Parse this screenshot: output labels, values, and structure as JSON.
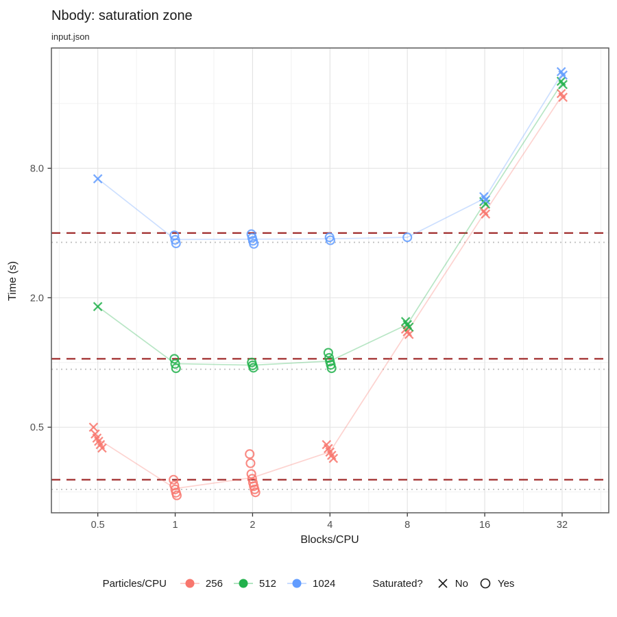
{
  "header": {
    "title": "Nbody: saturation zone",
    "subtitle": "input.json"
  },
  "axes": {
    "x_label": "Blocks/CPU",
    "y_label": "Time (s)"
  },
  "legend": {
    "series_title": "Particles/CPU",
    "series": [
      {
        "label": "256",
        "color": "#F8766D"
      },
      {
        "label": "512",
        "color": "#22B14C"
      },
      {
        "label": "1024",
        "color": "#619CFF"
      }
    ],
    "shape_title": "Saturated?",
    "shapes": [
      {
        "label": "No",
        "shape": "cross"
      },
      {
        "label": "Yes",
        "shape": "circle"
      }
    ]
  },
  "colors": {
    "ref_dashed": "#A02C2C",
    "ref_dotted": "#BDBDBD",
    "grid_major": "#E4E4E4",
    "grid_minor": "#F1F1F1",
    "panel_border": "#595959",
    "tick_text": "#4D4D4D"
  },
  "chart_data": {
    "type": "scatter",
    "title": "Nbody: saturation zone",
    "subtitle": "input.json",
    "xlabel": "Blocks/CPU",
    "ylabel": "Time (s)",
    "log_x": true,
    "log_y": true,
    "xlim": [
      0.33,
      48.6
    ],
    "ylim": [
      0.2,
      29
    ],
    "x_ticks": [
      0.5,
      1,
      2,
      4,
      8,
      16,
      32
    ],
    "x_tick_labels": [
      "0.5",
      "1",
      "2",
      "4",
      "8",
      "16",
      "32"
    ],
    "x_minor": [
      0.354,
      0.707,
      1.414,
      2.828,
      5.657,
      11.314,
      22.627,
      45.255
    ],
    "y_ticks": [
      0.5,
      2.0,
      8.0
    ],
    "y_tick_labels": [
      "0.5",
      "2.0",
      "8.0"
    ],
    "y_minor": [
      0.25,
      1,
      4,
      16
    ],
    "legend_position": "bottom",
    "ref_lines": [
      {
        "series": "1024",
        "dashed": 4.0,
        "dotted": 3.62
      },
      {
        "series": "512",
        "dashed": 1.04,
        "dotted": 0.93
      },
      {
        "series": "256",
        "dashed": 0.285,
        "dotted": 0.257
      }
    ],
    "series": [
      {
        "name": "256",
        "color": "#F8766D",
        "points": [
          {
            "x": 0.5,
            "y": 0.5,
            "saturated": false
          },
          {
            "x": 0.5,
            "y": 0.465,
            "saturated": false
          },
          {
            "x": 0.5,
            "y": 0.445,
            "saturated": false
          },
          {
            "x": 0.5,
            "y": 0.43,
            "saturated": false
          },
          {
            "x": 0.5,
            "y": 0.415,
            "saturated": false
          },
          {
            "x": 0.5,
            "y": 0.4,
            "saturated": false
          },
          {
            "x": 1,
            "y": 0.285,
            "saturated": true
          },
          {
            "x": 1,
            "y": 0.268,
            "saturated": true
          },
          {
            "x": 1,
            "y": 0.257,
            "saturated": true
          },
          {
            "x": 1,
            "y": 0.248,
            "saturated": true
          },
          {
            "x": 1,
            "y": 0.241,
            "saturated": true
          },
          {
            "x": 2,
            "y": 0.375,
            "saturated": true
          },
          {
            "x": 2,
            "y": 0.34,
            "saturated": true
          },
          {
            "x": 2,
            "y": 0.303,
            "saturated": true
          },
          {
            "x": 2,
            "y": 0.288,
            "saturated": true
          },
          {
            "x": 2,
            "y": 0.276,
            "saturated": true
          },
          {
            "x": 2,
            "y": 0.266,
            "saturated": true
          },
          {
            "x": 2,
            "y": 0.257,
            "saturated": true
          },
          {
            "x": 2,
            "y": 0.249,
            "saturated": true
          },
          {
            "x": 4,
            "y": 0.415,
            "saturated": false
          },
          {
            "x": 4,
            "y": 0.398,
            "saturated": false
          },
          {
            "x": 4,
            "y": 0.383,
            "saturated": false
          },
          {
            "x": 4,
            "y": 0.37,
            "saturated": false
          },
          {
            "x": 4,
            "y": 0.358,
            "saturated": false
          },
          {
            "x": 8,
            "y": 1.43,
            "saturated": false
          },
          {
            "x": 8,
            "y": 1.39,
            "saturated": false
          },
          {
            "x": 8,
            "y": 1.35,
            "saturated": false
          },
          {
            "x": 16,
            "y": 5.05,
            "saturated": false
          },
          {
            "x": 16,
            "y": 4.9,
            "saturated": false
          },
          {
            "x": 32,
            "y": 17.8,
            "saturated": false
          },
          {
            "x": 32,
            "y": 17.1,
            "saturated": false
          }
        ]
      },
      {
        "name": "512",
        "color": "#22B14C",
        "points": [
          {
            "x": 0.5,
            "y": 1.82,
            "saturated": false
          },
          {
            "x": 1,
            "y": 1.04,
            "saturated": true
          },
          {
            "x": 1,
            "y": 0.985,
            "saturated": true
          },
          {
            "x": 1,
            "y": 0.94,
            "saturated": true
          },
          {
            "x": 2,
            "y": 1.0,
            "saturated": true
          },
          {
            "x": 2,
            "y": 0.97,
            "saturated": true
          },
          {
            "x": 2,
            "y": 0.945,
            "saturated": true
          },
          {
            "x": 4,
            "y": 1.11,
            "saturated": true
          },
          {
            "x": 4,
            "y": 1.05,
            "saturated": true
          },
          {
            "x": 4,
            "y": 1.01,
            "saturated": true
          },
          {
            "x": 4,
            "y": 0.975,
            "saturated": true
          },
          {
            "x": 4,
            "y": 0.94,
            "saturated": true
          },
          {
            "x": 8,
            "y": 1.55,
            "saturated": false
          },
          {
            "x": 8,
            "y": 1.5,
            "saturated": false
          },
          {
            "x": 8,
            "y": 1.46,
            "saturated": false
          },
          {
            "x": 16,
            "y": 5.6,
            "saturated": false
          },
          {
            "x": 16,
            "y": 5.45,
            "saturated": false
          },
          {
            "x": 32,
            "y": 20.3,
            "saturated": false
          },
          {
            "x": 32,
            "y": 19.6,
            "saturated": false
          }
        ]
      },
      {
        "name": "1024",
        "color": "#619CFF",
        "points": [
          {
            "x": 0.5,
            "y": 7.15,
            "saturated": false
          },
          {
            "x": 1,
            "y": 3.9,
            "saturated": true
          },
          {
            "x": 1,
            "y": 3.72,
            "saturated": true
          },
          {
            "x": 1,
            "y": 3.58,
            "saturated": true
          },
          {
            "x": 2,
            "y": 3.95,
            "saturated": true
          },
          {
            "x": 2,
            "y": 3.8,
            "saturated": true
          },
          {
            "x": 2,
            "y": 3.68,
            "saturated": true
          },
          {
            "x": 2,
            "y": 3.56,
            "saturated": true
          },
          {
            "x": 4,
            "y": 3.82,
            "saturated": true
          },
          {
            "x": 4,
            "y": 3.7,
            "saturated": true
          },
          {
            "x": 8,
            "y": 3.82,
            "saturated": true
          },
          {
            "x": 16,
            "y": 5.9,
            "saturated": false
          },
          {
            "x": 16,
            "y": 5.7,
            "saturated": false
          },
          {
            "x": 32,
            "y": 22.5,
            "saturated": false
          },
          {
            "x": 32,
            "y": 21.7,
            "saturated": false
          }
        ]
      }
    ]
  }
}
